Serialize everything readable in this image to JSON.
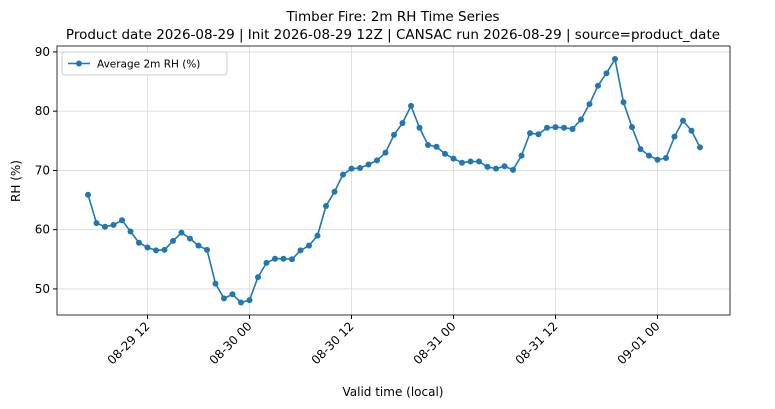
{
  "chart_data": {
    "type": "line",
    "title": "Timber Fire: 2m RH Time Series",
    "subtitle": "Product date 2026-08-29 | Init 2026-08-29 12Z | CANSAC run 2026-08-29 | source=product_date",
    "x_label": "Valid time (local)",
    "y_label": "RH (%)",
    "x": [
      "08-29 05",
      "08-29 06",
      "08-29 07",
      "08-29 08",
      "08-29 09",
      "08-29 10",
      "08-29 11",
      "08-29 12",
      "08-29 13",
      "08-29 14",
      "08-29 15",
      "08-29 16",
      "08-29 17",
      "08-29 18",
      "08-29 19",
      "08-29 20",
      "08-29 21",
      "08-29 22",
      "08-29 23",
      "08-30 00",
      "08-30 01",
      "08-30 02",
      "08-30 03",
      "08-30 04",
      "08-30 05",
      "08-30 06",
      "08-30 07",
      "08-30 08",
      "08-30 09",
      "08-30 10",
      "08-30 11",
      "08-30 12",
      "08-30 13",
      "08-30 14",
      "08-30 15",
      "08-30 16",
      "08-30 17",
      "08-30 18",
      "08-30 19",
      "08-30 20",
      "08-30 21",
      "08-30 22",
      "08-30 23",
      "08-31 00",
      "08-31 01",
      "08-31 02",
      "08-31 03",
      "08-31 04",
      "08-31 05",
      "08-31 06",
      "08-31 07",
      "08-31 08",
      "08-31 09",
      "08-31 10",
      "08-31 11",
      "08-31 12",
      "08-31 13",
      "08-31 14",
      "08-31 15",
      "08-31 16",
      "08-31 17",
      "08-31 18",
      "08-31 19",
      "08-31 20",
      "08-31 21",
      "08-31 22",
      "08-31 23",
      "09-01 00",
      "09-01 01",
      "09-01 02",
      "09-01 03",
      "09-01 04",
      "09-01 05"
    ],
    "series": [
      {
        "name": "Average 2m RH (%)",
        "color": "#1f77b4",
        "values": [
          65.9,
          61.1,
          60.5,
          60.8,
          61.6,
          59.7,
          57.8,
          57.0,
          56.5,
          56.6,
          58.1,
          59.5,
          58.5,
          57.3,
          56.6,
          50.9,
          48.4,
          49.1,
          47.7,
          48.1,
          52.0,
          54.4,
          55.1,
          55.1,
          55.0,
          56.5,
          57.3,
          59.0,
          64.0,
          66.4,
          69.3,
          70.3,
          70.4,
          71.0,
          71.7,
          73.0,
          76.0,
          78.0,
          80.9,
          77.2,
          74.3,
          74.0,
          72.8,
          72.0,
          71.3,
          71.5,
          71.5,
          70.6,
          70.3,
          70.7,
          70.1,
          72.5,
          76.3,
          76.1,
          77.2,
          77.3,
          77.2,
          77.0,
          78.6,
          81.2,
          84.3,
          86.4,
          88.8,
          81.5,
          77.3,
          73.6,
          72.5,
          71.8,
          72.1,
          75.7,
          78.4,
          76.7,
          73.9
        ]
      }
    ],
    "xticks": [
      "08-29 12",
      "08-30 00",
      "08-30 12",
      "08-31 00",
      "08-31 12",
      "09-01 00"
    ],
    "ylim": [
      45.6,
      91.0
    ],
    "yticks": [
      50,
      60,
      70,
      80,
      90
    ],
    "grid": true,
    "legend": "upper left"
  }
}
